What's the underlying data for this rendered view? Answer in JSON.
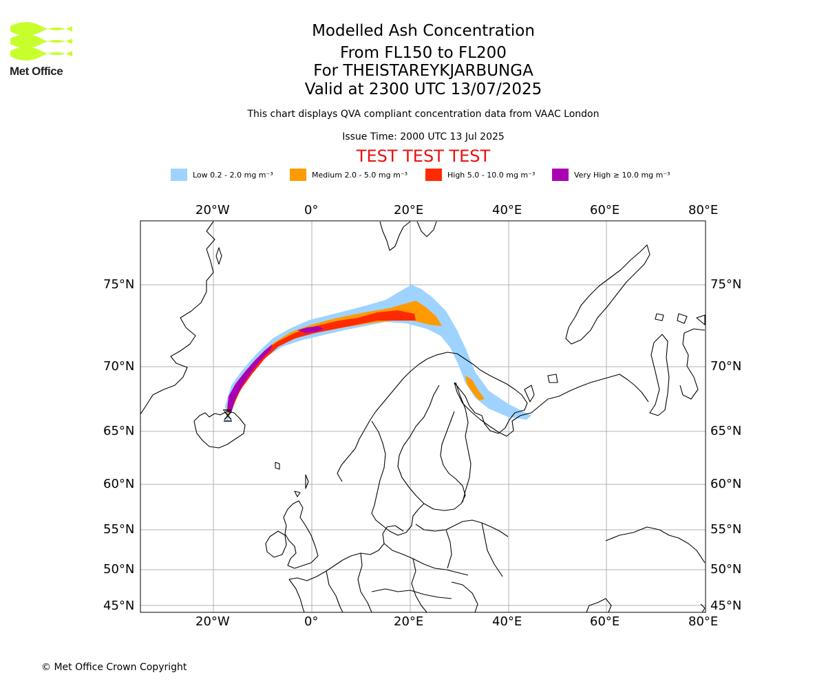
{
  "logo": {
    "text": "Met Office"
  },
  "title": {
    "line1": "Modelled Ash Concentration",
    "line2": "From FL150 to FL200",
    "line3": "For THEISTAREYKJARBUNGA",
    "line4": "Valid at 2300 UTC 13/07/2025"
  },
  "subtitle": "This chart displays QVA compliant concentration data from VAAC London",
  "issue_time": "Issue Time: 2000 UTC 13 Jul 2025",
  "test_banner": "TEST TEST TEST",
  "legend": [
    {
      "label": "Low 0.2 - 2.0 mg m⁻³",
      "color": "#9fd3ff"
    },
    {
      "label": "Medium 2.0 - 5.0 mg m⁻³",
      "color": "#ff9a00"
    },
    {
      "label": "High 5.0 - 10.0 mg m⁻³",
      "color": "#ff2a00"
    },
    {
      "label": "Very High ≥ 10.0 mg m⁻³",
      "color": "#aa00b4"
    }
  ],
  "map": {
    "lon_ticks": [
      "20°W",
      "0°",
      "20°E",
      "40°E",
      "60°E",
      "80°E"
    ],
    "lat_ticks": [
      "75°N",
      "70°N",
      "65°N",
      "60°N",
      "55°N",
      "50°N",
      "45°N"
    ],
    "volcano": "THEISTAREYKJARBUNGA",
    "colors": {
      "low": "#9fd3ff",
      "medium": "#ff9a00",
      "high": "#ff2a00",
      "very_high": "#aa00b4",
      "grid": "#b0b0b0",
      "coast": "#000000"
    }
  },
  "copyright": "© Met Office Crown Copyright"
}
